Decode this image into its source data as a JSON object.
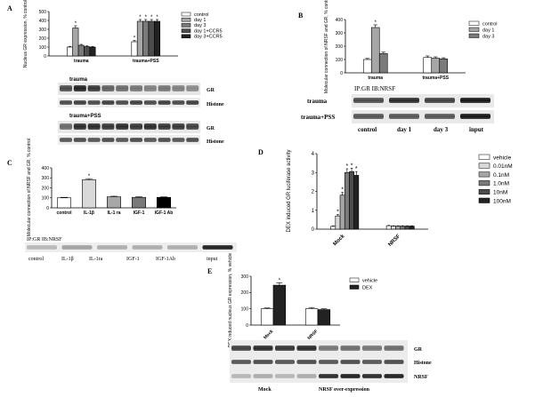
{
  "palette": {
    "black": "#000000",
    "white": "#ffffff",
    "gray1": "#d9d9d9",
    "gray2": "#a6a6a6",
    "gray3": "#7a7a7a",
    "gray4": "#4d4d4d",
    "gray5": "#222222"
  },
  "panels": {
    "A": {
      "letter": "A",
      "blot1_title": "trauma",
      "blot2_title": "trauma+PSS",
      "blot1_labels": [
        "GR",
        "Histone"
      ],
      "blot2_labels": [
        "GR",
        "Histone"
      ]
    },
    "B": {
      "letter": "B",
      "blot_title": "IP:GR IB:NRSF",
      "blot_rows": [
        "trauma",
        "trauma+PSS"
      ],
      "blot_lanes": [
        "control",
        "day 1",
        "day 3",
        "input"
      ]
    },
    "C": {
      "letter": "C",
      "blot_title": "IP:GR IB:NRSF",
      "blot_lanes": [
        "control",
        "IL-1β",
        "IL-1ra",
        "IGF-1",
        "IGF-1Ab",
        "input"
      ]
    },
    "D": {
      "letter": "D"
    },
    "E": {
      "letter": "E",
      "blot_labels": [
        "GR",
        "Histone",
        "NRSF"
      ],
      "blot_lanes": [
        "Mock",
        "NRSF over-expression"
      ]
    }
  },
  "chart_data": [
    {
      "id": "A",
      "type": "bar",
      "ylabel": "Nucleus GR expression, % control",
      "ylim": [
        0,
        500
      ],
      "yticks": [
        0,
        100,
        200,
        300,
        400,
        500
      ],
      "groups": [
        "trauma",
        "trauma+PSS"
      ],
      "series": [
        {
          "name": "control",
          "values": [
            100,
            160
          ]
        },
        {
          "name": "day 1",
          "values": [
            315,
            390
          ]
        },
        {
          "name": "day 3",
          "values": [
            120,
            390
          ]
        },
        {
          "name": "day 1+CCR5",
          "values": [
            105,
            390
          ]
        },
        {
          "name": "day 3+CCR5",
          "values": [
            100,
            390
          ]
        }
      ],
      "errors": [
        [
          8,
          15
        ],
        [
          25,
          20
        ],
        [
          10,
          20
        ],
        [
          8,
          20
        ],
        [
          8,
          20
        ]
      ],
      "annotations": [
        [
          "",
          "*"
        ],
        [
          "*",
          "*"
        ],
        [
          "",
          "*"
        ],
        [
          "",
          "*"
        ],
        [
          "",
          "*"
        ]
      ]
    },
    {
      "id": "B",
      "type": "bar",
      "ylabel": "Molecular connection of NRSF and GR, % control",
      "ylim": [
        0,
        400
      ],
      "yticks": [
        0,
        100,
        200,
        300,
        400
      ],
      "groups": [
        "trauma",
        "trauma+PSS"
      ],
      "series": [
        {
          "name": "control",
          "values": [
            100,
            115
          ]
        },
        {
          "name": "day 1",
          "values": [
            340,
            110
          ]
        },
        {
          "name": "day 3",
          "values": [
            145,
            105
          ]
        }
      ],
      "errors": [
        [
          8,
          12
        ],
        [
          20,
          10
        ],
        [
          10,
          8
        ]
      ],
      "annotations": [
        [
          "",
          ""
        ],
        [
          "*",
          ""
        ],
        [
          "",
          ""
        ]
      ]
    },
    {
      "id": "C",
      "type": "bar",
      "ylabel": "Molecular connection of NRSF and GR, % control",
      "ylim": [
        0,
        400
      ],
      "yticks": [
        0,
        100,
        200,
        300,
        400
      ],
      "categories": [
        "control",
        "IL-1β",
        "IL-1 ra",
        "IGF-1",
        "IGF-1 Ab"
      ],
      "values": [
        100,
        280,
        110,
        105,
        105
      ],
      "errors": [
        5,
        12,
        6,
        6,
        5
      ],
      "annotations": [
        "",
        "*",
        "",
        "",
        ""
      ]
    },
    {
      "id": "D",
      "type": "bar",
      "ylabel": "DEX induced GR luciferase activity",
      "ylim": [
        0,
        4
      ],
      "yticks": [
        0,
        1,
        2,
        3,
        4
      ],
      "groups": [
        "Mock",
        "NRSF"
      ],
      "series": [
        {
          "name": "vehicle",
          "values": [
            0.15,
            0.18
          ]
        },
        {
          "name": "0.01nM",
          "values": [
            0.7,
            0.16
          ]
        },
        {
          "name": "0.1nM",
          "values": [
            1.8,
            0.16
          ]
        },
        {
          "name": "1.0nM",
          "values": [
            3.0,
            0.16
          ]
        },
        {
          "name": "10nM",
          "values": [
            3.05,
            0.16
          ]
        },
        {
          "name": "100nM",
          "values": [
            2.85,
            0.16
          ]
        }
      ],
      "errors": [
        [
          0.02,
          0.02
        ],
        [
          0.08,
          0.02
        ],
        [
          0.15,
          0.02
        ],
        [
          0.2,
          0.02
        ],
        [
          0.18,
          0.02
        ],
        [
          0.2,
          0.02
        ]
      ],
      "annotations": [
        [
          "",
          ""
        ],
        [
          "*",
          ""
        ],
        [
          "*",
          ""
        ],
        [
          "*",
          ""
        ],
        [
          "*",
          ""
        ],
        [
          "*",
          ""
        ]
      ]
    },
    {
      "id": "E",
      "type": "bar",
      "ylabel": "DEX induced nucleus GR expression, % vehicle",
      "ylim": [
        0,
        300
      ],
      "yticks": [
        0,
        100,
        200,
        300
      ],
      "groups": [
        "Mock",
        "NRSF"
      ],
      "series": [
        {
          "name": "vehicle",
          "values": [
            100,
            100
          ]
        },
        {
          "name": "DEX",
          "values": [
            245,
            95
          ]
        }
      ],
      "errors": [
        [
          5,
          8
        ],
        [
          15,
          5
        ]
      ],
      "annotations": [
        [
          "",
          ""
        ],
        [
          "*",
          ""
        ]
      ]
    }
  ]
}
